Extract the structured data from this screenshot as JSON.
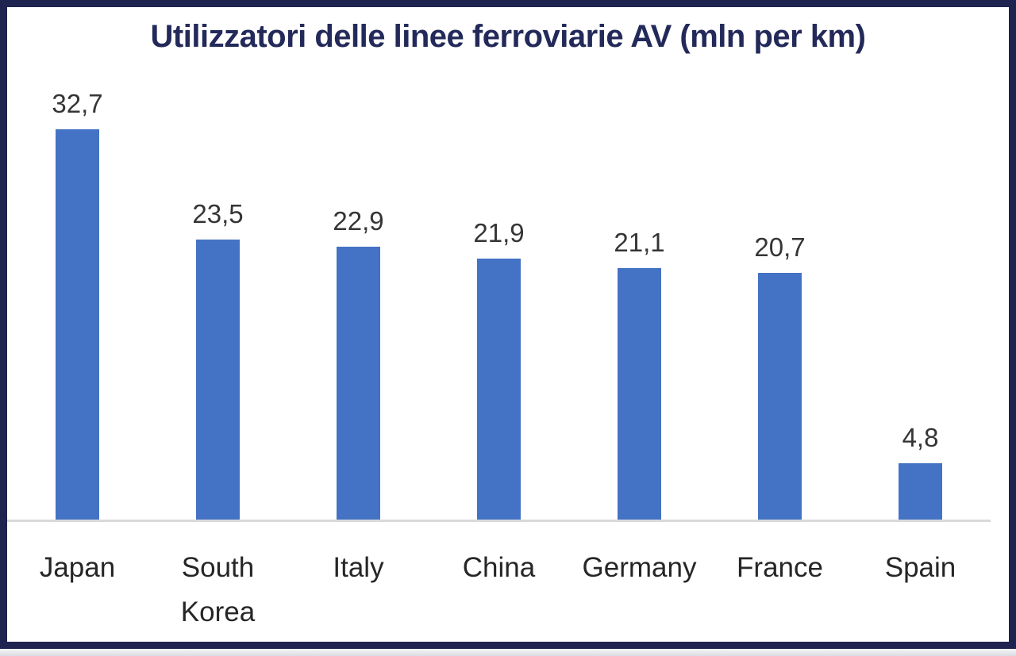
{
  "frame": {
    "border_color": "#1e2350",
    "bottom_strip_color": "#d9dce1",
    "background": "#ffffff"
  },
  "chart_data": {
    "type": "bar",
    "title": "Utilizzatori delle linee ferroviarie AV (mln per km)",
    "title_color": "#232a5a",
    "categories": [
      "Japan",
      "South Korea",
      "Italy",
      "China",
      "Germany",
      "France",
      "Spain"
    ],
    "values": [
      32.7,
      23.5,
      22.9,
      21.9,
      21.1,
      20.7,
      4.8
    ],
    "value_labels": [
      "32,7",
      "23,5",
      "22,9",
      "21,9",
      "21,1",
      "20,7",
      "4,8"
    ],
    "xlabel": "",
    "ylabel": "",
    "ylim": [
      0,
      33
    ],
    "grid": false,
    "legend": false,
    "bar_color": "#4472c4",
    "value_label_color": "#353535",
    "category_label_color": "#262626",
    "axis_line_color": "#d9d9d9"
  }
}
